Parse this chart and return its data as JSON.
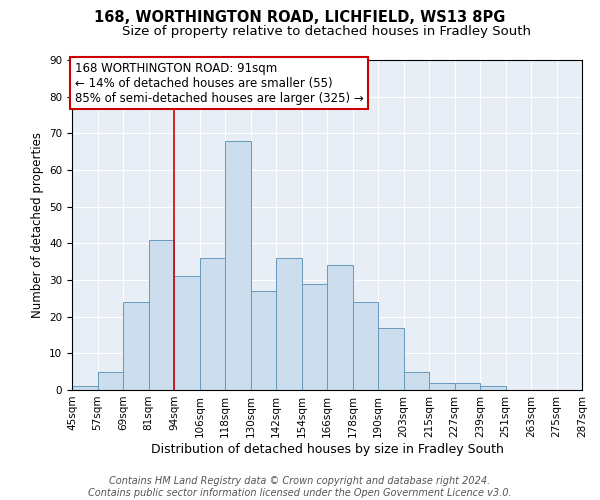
{
  "title1": "168, WORTHINGTON ROAD, LICHFIELD, WS13 8PG",
  "title2": "Size of property relative to detached houses in Fradley South",
  "xlabel": "Distribution of detached houses by size in Fradley South",
  "ylabel": "Number of detached properties",
  "bin_labels": [
    "45sqm",
    "57sqm",
    "69sqm",
    "81sqm",
    "94sqm",
    "106sqm",
    "118sqm",
    "130sqm",
    "142sqm",
    "154sqm",
    "166sqm",
    "178sqm",
    "190sqm",
    "203sqm",
    "215sqm",
    "227sqm",
    "239sqm",
    "251sqm",
    "263sqm",
    "275sqm",
    "287sqm"
  ],
  "bar_heights": [
    1,
    5,
    24,
    41,
    31,
    36,
    68,
    27,
    36,
    29,
    34,
    24,
    17,
    5,
    2,
    2,
    1,
    0,
    0,
    0
  ],
  "bar_color": "#ccdded",
  "bar_edge_color": "#6699bb",
  "annotation_text": "168 WORTHINGTON ROAD: 91sqm\n← 14% of detached houses are smaller (55)\n85% of semi-detached houses are larger (325) →",
  "annotation_box_color": "white",
  "annotation_edge_color": "#cc0000",
  "red_line_color": "#cc0000",
  "ylim": [
    0,
    90
  ],
  "yticks": [
    0,
    10,
    20,
    30,
    40,
    50,
    60,
    70,
    80,
    90
  ],
  "bg_color": "#e8eef5",
  "footer_text": "Contains HM Land Registry data © Crown copyright and database right 2024.\nContains public sector information licensed under the Open Government Licence v3.0.",
  "title1_fontsize": 10.5,
  "title2_fontsize": 9.5,
  "xlabel_fontsize": 9,
  "ylabel_fontsize": 8.5,
  "tick_fontsize": 7.5,
  "annotation_fontsize": 8.5,
  "footer_fontsize": 7
}
